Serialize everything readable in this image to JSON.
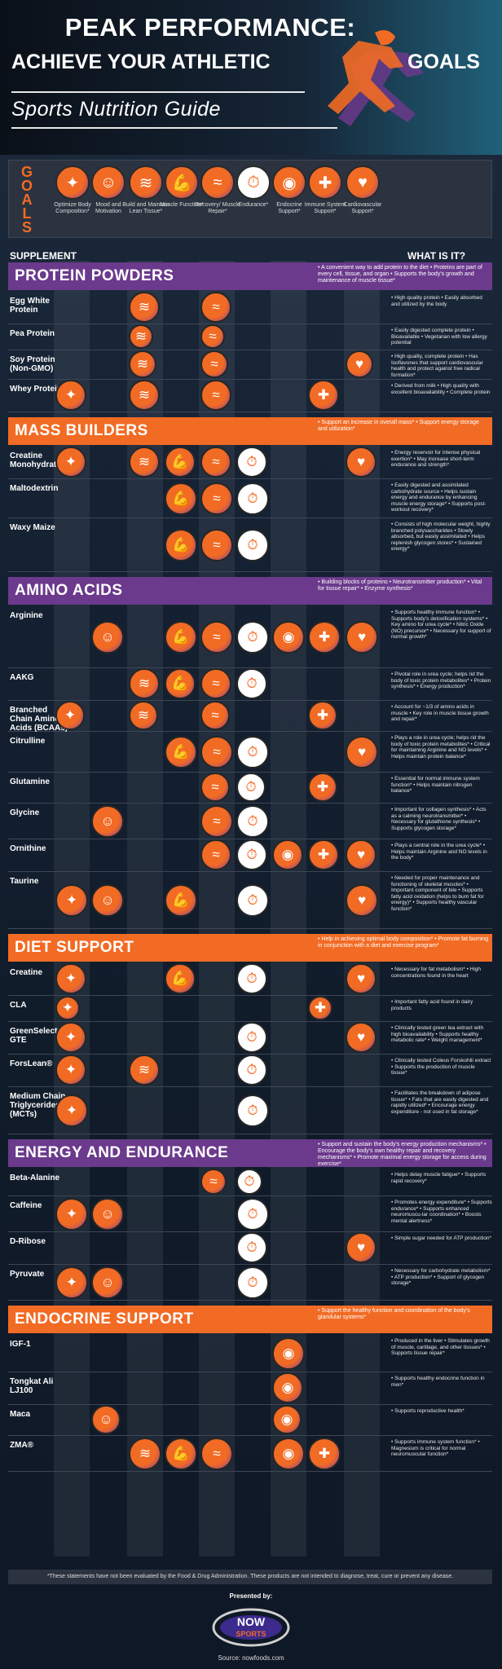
{
  "header": {
    "line1": "PEAK PERFORMANCE:",
    "line2a": "ACHIEVE  YOUR ATHLETIC",
    "line2b": "GOALS",
    "subtitle": "Sports Nutrition Guide"
  },
  "goals_label": "GOALS",
  "goals": [
    {
      "label": "Optimize Body Composition*",
      "icon": "body-icon",
      "glyph": "✦"
    },
    {
      "label": "Mood and Motivation",
      "icon": "brain-icon",
      "glyph": "☺"
    },
    {
      "label": "Build and Maintain Lean Tissue*",
      "icon": "muscle-fiber-icon",
      "glyph": "≋"
    },
    {
      "label": "Muscle Function*",
      "icon": "flexed-arm-icon",
      "glyph": "💪"
    },
    {
      "label": "Recovery/ Muscle Repair*",
      "icon": "muscle-repair-icon",
      "glyph": "≈"
    },
    {
      "label": "Endurance*",
      "icon": "stopwatch-icon",
      "glyph": "⏱"
    },
    {
      "label": "Endocrine Support*",
      "icon": "gland-icon",
      "glyph": "◉"
    },
    {
      "label": "Immune System Support*",
      "icon": "immune-body-icon",
      "glyph": "✚"
    },
    {
      "label": "Cardiovascular Support*",
      "icon": "heart-icon",
      "glyph": "♥"
    }
  ],
  "columns": {
    "supplement": "SUPPLEMENT",
    "what": "WHAT IS IT?"
  },
  "sections": [
    {
      "title": "PROTEIN POWDERS",
      "color": "#6b3a8c",
      "desc": "• A convenient way to add protein to the diet • Proteins are part of every cell, tissue, and organ • Supports the body's growth and maintenance of muscle tissue*",
      "rows": [
        {
          "name": "Egg White Protein",
          "goals": [
            2,
            4
          ],
          "desc": "• High quality protein • Easily absorbed and utilized by the body"
        },
        {
          "name": "Pea Protein",
          "goals": [
            2,
            4
          ],
          "desc": "• Easily digested complete protein • Bioavailable • Vegetarian with low allergy potential"
        },
        {
          "name": "Soy Protein (Non-GMO)",
          "goals": [
            2,
            4,
            8
          ],
          "desc": "• High quality, complete protein • Has Isoflavones that support cardiovascular health and protect against free radical formation*"
        },
        {
          "name": "Whey Protein",
          "goals": [
            0,
            2,
            4,
            7
          ],
          "desc": "• Derived from milk • High quality with excellent bioavailability • Complete protein"
        }
      ]
    },
    {
      "title": "MASS BUILDERS",
      "color": "#f26b24",
      "desc": "• Support an increase in overall mass* • Support energy storage and utilization*",
      "rows": [
        {
          "name": "Creatine Monohydrate",
          "goals": [
            0,
            2,
            3,
            4,
            5,
            8
          ],
          "desc": "• Energy reservoir for intense physical exertion* • May increase short-term endurance and strength*"
        },
        {
          "name": "Maltodextrin",
          "goals": [
            3,
            4,
            5
          ],
          "desc": "• Easily digested and assimilated carbohydrate source • Helps sustain energy and endurance by enhancing muscle energy storage* • Supports post-workout recovery*"
        },
        {
          "name": "Waxy Maize",
          "goals": [
            3,
            4,
            5
          ],
          "desc": "• Consists of high molecular weight, highly branched polysaccharides • Slowly absorbed, but easily assimilated • Helps replenish glycogen stores* • Sustained energy*"
        }
      ]
    },
    {
      "title": "AMINO ACIDS",
      "color": "#6b3a8c",
      "desc": "• Building blocks of proteins • Neurotransmitter production* • Vital for tissue repair* • Enzyme synthesis*",
      "rows": [
        {
          "name": "Arginine",
          "goals": [
            1,
            3,
            4,
            5,
            6,
            7,
            8
          ],
          "desc": "• Supports healthy immune function* • Supports body's detoxification systems* • Key amino for urea cycle* • Nitric Oxide (NO) precursor* • Necessary for support of normal growth*"
        },
        {
          "name": "AAKG",
          "goals": [
            2,
            3,
            4,
            5
          ],
          "desc": "• Pivotal role in urea cycle; helps rid the body of toxic protein metabolites* • Protein synthesis* • Energy production*"
        },
        {
          "name": "Branched Chain Amino Acids (BCAAs)",
          "goals": [
            0,
            2,
            4,
            7
          ],
          "desc": "• Account for ~1/3 of amino acids in muscle • Key role in muscle tissue growth and repair*"
        },
        {
          "name": "Citrulline",
          "goals": [
            3,
            4,
            5,
            8
          ],
          "desc": "• Plays a role in urea cycle; helps rid the body of toxic protein metabolites* • Critical for maintaining Arginine and NO levels* • Helps maintain protein balance*"
        },
        {
          "name": "Glutamine",
          "goals": [
            4,
            5,
            7
          ],
          "desc": "• Essential for normal immune system function* • Helps maintain nitrogen balance*"
        },
        {
          "name": "Glycine",
          "goals": [
            1,
            4,
            5
          ],
          "desc": "• Important for collagen synthesis* • Acts as a calming neurotransmitter* • Necessary for glutathione synthesis* • Supports glycogen storage*"
        },
        {
          "name": "Ornithine",
          "goals": [
            4,
            5,
            6,
            7,
            8
          ],
          "desc": "• Plays a central role in the urea cycle* • Helps maintain Arginine and NO levels in the body*"
        },
        {
          "name": "Taurine",
          "goals": [
            0,
            1,
            3,
            5,
            8
          ],
          "desc": "• Needed for proper maintenance and functioning of skeletal muscles* • Important component of bile • Supports fatty acid oxidation (helps to burn fat for energy)* • Supports healthy vascular function*"
        }
      ]
    },
    {
      "title": "DIET SUPPORT",
      "color": "#f26b24",
      "desc": "• Help in achieving optimal body composition* • Promote fat burning in conjunction with a diet and exercise program*",
      "rows": [
        {
          "name": "Creatine",
          "goals": [
            0,
            3,
            5,
            8
          ],
          "desc": "• Necessary for fat metabolism* • High concentrations found in the heart"
        },
        {
          "name": "CLA",
          "goals": [
            0,
            7
          ],
          "desc": "• Important fatty acid found in dairy products"
        },
        {
          "name": "GreenSelect® GTE",
          "goals": [
            0,
            5,
            8
          ],
          "desc": "• Clinically tested green tea extract with high bioavailability • Supports healthy metabolic rate* • Weight management*"
        },
        {
          "name": "ForsLean®",
          "goals": [
            0,
            2,
            5
          ],
          "desc": "• Clinically tested Coleus Forskohlii extract • Supports the production of muscle tissue*"
        },
        {
          "name": "Medium Chain Triglycerides (MCTs)",
          "goals": [
            0,
            5
          ],
          "desc": "• Facilitates the breakdown of adipose tissue* • Fats that are easily digested and rapidly utilized* • Encourage energy expenditure - not used in fat storage*"
        }
      ]
    },
    {
      "title": "ENERGY AND ENDURANCE",
      "color": "#6b3a8c",
      "desc": "• Support and sustain the body's energy production mechanisms* • Encourage the body's own healthy repair and recovery mechanisms* • Promote maximal energy storage for access during exercise*",
      "rows": [
        {
          "name": "Beta-Alanine",
          "goals": [
            4,
            5
          ],
          "desc": "• Helps delay muscle fatigue* • Supports rapid recovery*"
        },
        {
          "name": "Caffeine",
          "goals": [
            0,
            1,
            5
          ],
          "desc": "• Promotes energy expenditure* • Supports endurance* • Supports enhanced neuromuscu-lar coordination* • Boosts mental alertness*"
        },
        {
          "name": "D-Ribose",
          "goals": [
            5,
            8
          ],
          "desc": "• Simple sugar needed for ATP production*"
        },
        {
          "name": "Pyruvate",
          "goals": [
            0,
            1,
            5
          ],
          "desc": "• Necessary for carbohydrate metabolism* • ATP production* • Support of glycogen storage*"
        }
      ]
    },
    {
      "title": "ENDOCRINE  SUPPORT",
      "color": "#f26b24",
      "desc": "• Support the healthy function and coordination of the body's glandular systems*",
      "rows": [
        {
          "name": "IGF-1",
          "goals": [
            6
          ],
          "desc": "• Produced in the liver • Stimulates growth of muscle, cartilage, and other tissues* • Supports tissue repair*"
        },
        {
          "name": "Tongkat Ali LJ100",
          "goals": [
            6
          ],
          "desc": "• Supports healthy endocrine function in men*"
        },
        {
          "name": "Maca",
          "goals": [
            1,
            6
          ],
          "desc": "• Supports reproductive health*"
        },
        {
          "name": "ZMA®",
          "goals": [
            2,
            3,
            4,
            6,
            7
          ],
          "desc": "• Supports immune system function* • Magnesium is critical for normal neuromuscular function*"
        }
      ]
    }
  ],
  "footnote": "*These statements have not been evaluated by the Food & Drug Administration. These products are not intended to diagnose, treat, cure or prevent any disease.",
  "presented": "Presented by:",
  "logo_text": "NOW SPORTS",
  "source": "Source: nowfoods.com"
}
